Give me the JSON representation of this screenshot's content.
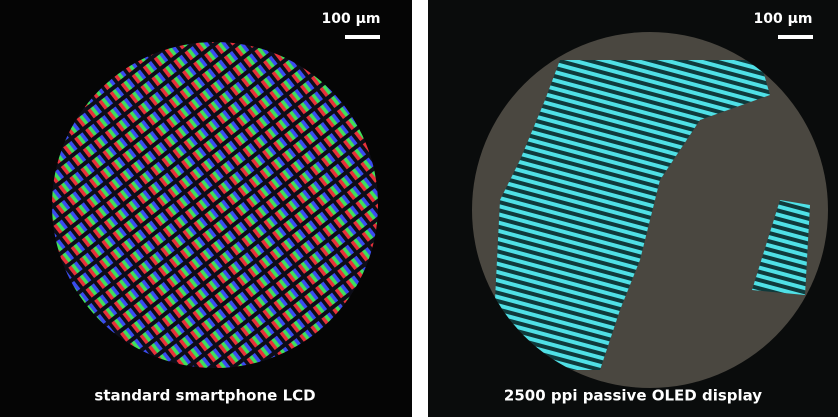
{
  "panels": [
    {
      "scale_bar": "100 µm",
      "caption": "standard smartphone LCD"
    },
    {
      "scale_bar": "100 µm",
      "caption": "2500 ppi passive OLED display"
    }
  ]
}
